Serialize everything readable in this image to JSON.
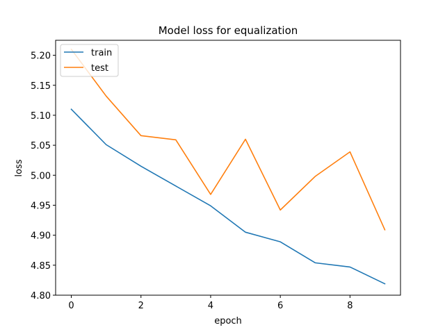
{
  "chart_data": {
    "type": "line",
    "title": "Model loss for equalization",
    "xlabel": "epoch",
    "ylabel": "loss",
    "x": [
      0,
      1,
      2,
      3,
      4,
      5,
      6,
      7,
      8,
      9
    ],
    "xlim": [
      -0.45,
      9.45
    ],
    "ylim": [
      4.8,
      5.225
    ],
    "xticks": [
      0,
      2,
      4,
      6,
      8
    ],
    "xtick_labels": [
      "0",
      "2",
      "4",
      "6",
      "8"
    ],
    "yticks": [
      4.8,
      4.85,
      4.9,
      4.95,
      5.0,
      5.05,
      5.1,
      5.15,
      5.2
    ],
    "ytick_labels": [
      "4.80",
      "4.85",
      "4.90",
      "4.95",
      "5.00",
      "5.05",
      "5.10",
      "5.15",
      "5.20"
    ],
    "grid": false,
    "legend_position": "top-left",
    "series": [
      {
        "name": "train",
        "color": "#1f77b4",
        "values": [
          5.11,
          5.051,
          5.015,
          4.982,
          4.949,
          4.905,
          4.889,
          4.854,
          4.847,
          4.819
        ]
      },
      {
        "name": "test",
        "color": "#ff7f0e",
        "values": [
          5.21,
          5.132,
          5.066,
          5.059,
          4.968,
          5.06,
          4.942,
          4.998,
          5.039,
          4.909
        ]
      }
    ]
  }
}
